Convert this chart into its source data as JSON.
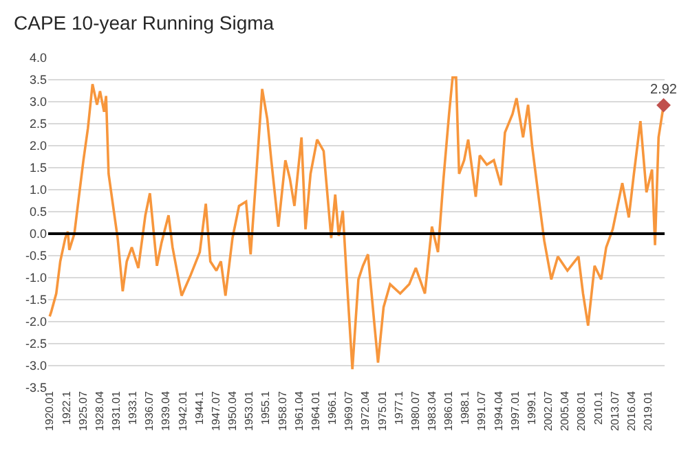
{
  "chart_data": {
    "type": "line",
    "title": "CAPE 10-year Running Sigma",
    "xlim": [
      "1919-10",
      "2021-10"
    ],
    "xticks": [
      {
        "value": "1920-01",
        "label": "1920.01"
      },
      {
        "value": "1922-10",
        "label": "1922.1"
      },
      {
        "value": "1925-07",
        "label": "1925.07"
      },
      {
        "value": "1928-04",
        "label": "1928.04"
      },
      {
        "value": "1931-01",
        "label": "1931.01"
      },
      {
        "value": "1933-10",
        "label": "1933.1"
      },
      {
        "value": "1936-07",
        "label": "1936.07"
      },
      {
        "value": "1939-04",
        "label": "1939.04"
      },
      {
        "value": "1942-01",
        "label": "1942.01"
      },
      {
        "value": "1944-10",
        "label": "1944.1"
      },
      {
        "value": "1947-07",
        "label": "1947.07"
      },
      {
        "value": "1950-04",
        "label": "1950.04"
      },
      {
        "value": "1953-01",
        "label": "1953.01"
      },
      {
        "value": "1955-10",
        "label": "1955.1"
      },
      {
        "value": "1958-07",
        "label": "1958.07"
      },
      {
        "value": "1961-04",
        "label": "1961.04"
      },
      {
        "value": "1964-01",
        "label": "1964.01"
      },
      {
        "value": "1966-10",
        "label": "1966.1"
      },
      {
        "value": "1969-07",
        "label": "1969.07"
      },
      {
        "value": "1972-04",
        "label": "1972.04"
      },
      {
        "value": "1975-01",
        "label": "1975.01"
      },
      {
        "value": "1977-10",
        "label": "1977.1"
      },
      {
        "value": "1980-07",
        "label": "1980.07"
      },
      {
        "value": "1983-04",
        "label": "1983.04"
      },
      {
        "value": "1986-01",
        "label": "1986.01"
      },
      {
        "value": "1988-10",
        "label": "1988.1"
      },
      {
        "value": "1991-07",
        "label": "1991.07"
      },
      {
        "value": "1994-04",
        "label": "1994.04"
      },
      {
        "value": "1997-01",
        "label": "1997.01"
      },
      {
        "value": "1999-10",
        "label": "1999.1"
      },
      {
        "value": "2002-07",
        "label": "2002.07"
      },
      {
        "value": "2005-04",
        "label": "2005.04"
      },
      {
        "value": "2008-01",
        "label": "2008.01"
      },
      {
        "value": "2010-10",
        "label": "2010.1"
      },
      {
        "value": "2013-07",
        "label": "2013.07"
      },
      {
        "value": "2016-04",
        "label": "2016.04"
      },
      {
        "value": "2019-01",
        "label": "2019.01"
      }
    ],
    "ylim": [
      -3.5,
      4.0
    ],
    "yticks": [
      {
        "value": -3.5,
        "label": "-3.5"
      },
      {
        "value": -3,
        "label": "-3.0"
      },
      {
        "value": -2.5,
        "label": "-2.5"
      },
      {
        "value": -2,
        "label": "-2.0"
      },
      {
        "value": -1.5,
        "label": "-1.5"
      },
      {
        "value": -1,
        "label": "-1.0"
      },
      {
        "value": -0.5,
        "label": "-0.5"
      },
      {
        "value": 0,
        "label": "0.0"
      },
      {
        "value": 0.5,
        "label": "0.5"
      },
      {
        "value": 1,
        "label": "1.0"
      },
      {
        "value": 1.5,
        "label": "1.5"
      },
      {
        "value": 2,
        "label": "2.0"
      },
      {
        "value": 2.5,
        "label": "2.5"
      },
      {
        "value": 3,
        "label": "3.0"
      },
      {
        "value": 3.5,
        "label": "3.5"
      },
      {
        "value": 4,
        "label": "4.0"
      }
    ],
    "grid": "y",
    "ref_lines": [
      {
        "axis": "y",
        "value": 0,
        "color": "#000000"
      }
    ],
    "series": [
      {
        "type": "line",
        "color": "#f7963c",
        "marker": "none",
        "x": [
          "1920-01",
          "1920-04",
          "1921-02",
          "1921-10",
          "1922-08",
          "1923-01",
          "1923-04",
          "1924-02",
          "1924-11",
          "1925-08",
          "1926-05",
          "1927-02",
          "1927-11",
          "1928-05",
          "1929-01",
          "1929-05",
          "1929-10",
          "1930-07",
          "1931-04",
          "1932-02",
          "1932-10",
          "1933-08",
          "1934-09",
          "1935-11",
          "1936-08",
          "1937-10",
          "1938-07",
          "1939-09",
          "1940-05",
          "1941-11",
          "1943-05",
          "1944-11",
          "1945-11",
          "1946-08",
          "1947-08",
          "1948-05",
          "1949-02",
          "1950-04",
          "1951-05",
          "1952-07",
          "1953-04",
          "1954-02",
          "1955-03",
          "1956-01",
          "1956-09",
          "1957-11",
          "1959-01",
          "1959-10",
          "1960-07",
          "1961-09",
          "1962-05",
          "1963-03",
          "1964-04",
          "1965-05",
          "1966-08",
          "1967-04",
          "1967-11",
          "1968-07",
          "1969-03",
          "1970-02",
          "1971-02",
          "1971-11",
          "1972-09",
          "1973-10",
          "1974-05",
          "1975-04",
          "1976-05",
          "1978-01",
          "1979-07",
          "1980-08",
          "1982-02",
          "1983-04",
          "1984-04",
          "1985-03",
          "1986-02",
          "1986-09",
          "1987-04",
          "1987-10",
          "1988-08",
          "1989-04",
          "1990-07",
          "1991-03",
          "1992-05",
          "1993-07",
          "1994-09",
          "1995-05",
          "1996-08",
          "1997-04",
          "1998-05",
          "1999-03",
          "1999-11",
          "2001-02",
          "2001-11",
          "2003-01",
          "2004-02",
          "2005-09",
          "2007-07",
          "2008-04",
          "2009-02",
          "2010-03",
          "2011-04",
          "2012-02",
          "2013-03",
          "2014-10",
          "2015-11",
          "2016-09",
          "2017-10",
          "2018-10",
          "2019-09",
          "2020-03",
          "2020-10",
          "2021-08"
        ],
        "values": [
          -1.88,
          -1.78,
          -1.36,
          -0.63,
          -0.1,
          0.05,
          -0.37,
          0.0,
          0.84,
          1.67,
          2.4,
          3.4,
          2.93,
          3.24,
          2.77,
          3.13,
          1.36,
          0.63,
          -0.1,
          -1.31,
          -0.63,
          -0.31,
          -0.78,
          0.42,
          0.92,
          -0.73,
          -0.21,
          0.42,
          -0.31,
          -1.41,
          -0.94,
          -0.42,
          0.68,
          -0.63,
          -0.84,
          -0.63,
          -1.41,
          -0.1,
          0.63,
          0.73,
          -0.47,
          1.15,
          3.29,
          2.61,
          1.67,
          0.16,
          1.67,
          1.25,
          0.63,
          2.19,
          0.1,
          1.36,
          2.14,
          1.88,
          -0.1,
          0.89,
          -0.05,
          0.52,
          -1.04,
          -3.08,
          -1.04,
          -0.73,
          -0.47,
          -2.09,
          -2.93,
          -1.67,
          -1.15,
          -1.36,
          -1.15,
          -0.78,
          -1.36,
          0.16,
          -0.42,
          1.25,
          2.72,
          3.55,
          3.55,
          1.36,
          1.67,
          2.14,
          0.84,
          1.78,
          1.57,
          1.67,
          1.1,
          2.3,
          2.72,
          3.08,
          2.19,
          2.93,
          1.99,
          0.63,
          -0.16,
          -1.04,
          -0.52,
          -0.84,
          -0.52,
          -1.36,
          -2.09,
          -0.73,
          -1.04,
          -0.31,
          0.1,
          1.15,
          0.37,
          1.36,
          2.56,
          0.94,
          1.46,
          -0.26,
          2.19,
          2.92
        ]
      },
      {
        "type": "scatter",
        "color": "#c0504d",
        "marker": "diamond",
        "x": [
          "2021-08"
        ],
        "values": [
          2.92
        ],
        "value_labels": [
          "2.92"
        ]
      }
    ]
  }
}
